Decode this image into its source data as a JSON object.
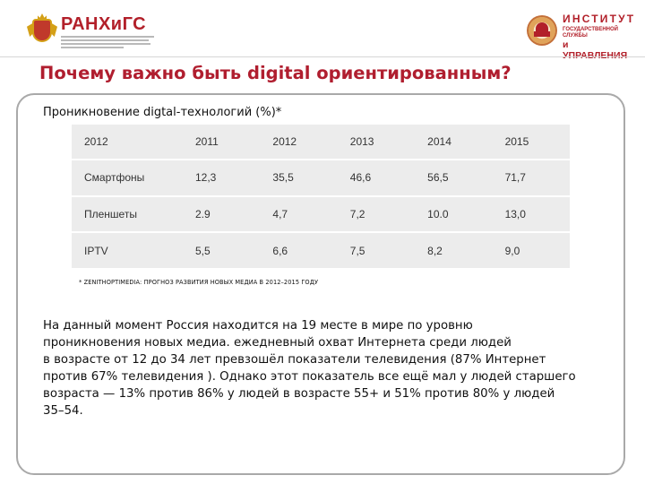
{
  "header": {
    "left_logo": {
      "name": "РАНХиГС",
      "emblem_icon": "double-headed-eagle-emblem"
    },
    "right_logo": {
      "line1": "ИНСТИТУТ",
      "line2": "ГОСУДАРСТВЕННОЙ СЛУЖБЫ",
      "line3": "и УПРАВЛЕНИЯ",
      "seal_icon": "institute-seal-icon"
    }
  },
  "title": "Почему важно быть digital ориентированным?",
  "subtitle": "Проникновение digtal-технологий (%)*",
  "table": {
    "columns": [
      "2012",
      "2011",
      "2012",
      "2013",
      "2014",
      "2015"
    ],
    "rows": [
      {
        "label": "Смартфоны",
        "values": [
          "12,3",
          "35,5",
          "46,6",
          "56,5",
          "71,7"
        ]
      },
      {
        "label": "Пленшеты",
        "values": [
          "2.9",
          "4,7",
          "7,2",
          "10.0",
          "13,0"
        ]
      },
      {
        "label": "IPTV",
        "values": [
          "5,5",
          "6,6",
          "7,5",
          "8,2",
          "9,0"
        ]
      }
    ]
  },
  "footnote": "* ZENITHOPTIMEDIA: ПРОГНОЗ РАЗВИТИЯ НОВЫХ МЕДИА В 2012–2015 ГОДУ",
  "body_lines": [
    "На данный момент Россия находится на 19 месте в мире по уровню",
    "проникновения новых медиа. ежедневный охват Интернета среди людей",
    "в возрасте от 12 до 34 лет превзошёл показатели телевидения (87% Интернет",
    "против 67% телевидения ). Однако этот показатель все ещё мал у людей старшего",
    "возраста — 13% против 86% у людей в возрасте 55+ и 51% против 80% у людей",
    "35–54."
  ],
  "colors": {
    "accent": "#b01e2f",
    "table_bg": "#ececec",
    "frame": "#a9a9a9"
  }
}
